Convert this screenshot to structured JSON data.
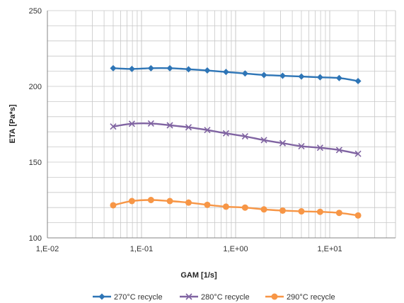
{
  "chart_data": {
    "type": "line",
    "xlabel": "GAM [1/s]",
    "ylabel": "ETA [Pa*s]",
    "x_scale": "log",
    "xlim": [
      0.01,
      50
    ],
    "ylim": [
      100,
      250
    ],
    "x_ticks": [
      0.01,
      0.1,
      1,
      10
    ],
    "x_tick_labels": [
      "1,E-02",
      "1,E-01",
      "1,E+00",
      "1,E+01"
    ],
    "y_ticks": [
      100,
      150,
      200,
      250
    ],
    "y_tick_labels": [
      "100",
      "150",
      "200",
      "250"
    ],
    "grid": true,
    "legend_position": "bottom",
    "x": [
      0.05,
      0.079,
      0.126,
      0.2,
      0.316,
      0.5,
      0.79,
      1.26,
      2,
      3.16,
      5,
      7.9,
      12.6,
      20
    ],
    "series": [
      {
        "name": "270°C recycle",
        "color": "#2e75b6",
        "marker": "diamond",
        "values": [
          212,
          211.5,
          212,
          212,
          211.3,
          210.5,
          209.5,
          208.5,
          207.5,
          207,
          206.5,
          206,
          205.5,
          203.5
        ]
      },
      {
        "name": "280°C recycle",
        "color": "#8064a2",
        "marker": "x",
        "values": [
          173.5,
          175.3,
          175.5,
          174.3,
          173,
          171.2,
          169,
          167,
          164.5,
          162.5,
          160.5,
          159.5,
          158,
          155.5
        ]
      },
      {
        "name": "290°C recycle",
        "color": "#f79646",
        "marker": "circle",
        "values": [
          121.5,
          124.3,
          125,
          124.3,
          123.3,
          121.8,
          120.6,
          120,
          118.8,
          118,
          117.5,
          117.2,
          116.5,
          114.8
        ]
      }
    ]
  }
}
